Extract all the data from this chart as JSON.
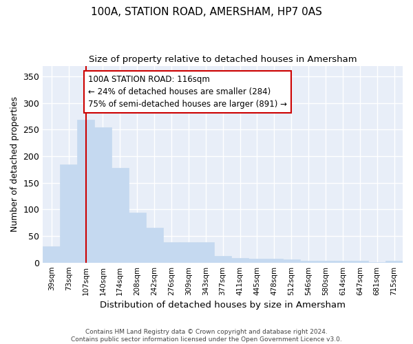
{
  "title": "100A, STATION ROAD, AMERSHAM, HP7 0AS",
  "subtitle": "Size of property relative to detached houses in Amersham",
  "xlabel": "Distribution of detached houses by size in Amersham",
  "ylabel": "Number of detached properties",
  "bar_color": "#c5d9f0",
  "bar_edge_color": "#c5d9f0",
  "background_color": "#e8eef8",
  "grid_color": "#ffffff",
  "fig_background": "#ffffff",
  "categories": [
    "39sqm",
    "73sqm",
    "107sqm",
    "140sqm",
    "174sqm",
    "208sqm",
    "242sqm",
    "276sqm",
    "309sqm",
    "343sqm",
    "377sqm",
    "411sqm",
    "445sqm",
    "478sqm",
    "512sqm",
    "546sqm",
    "580sqm",
    "614sqm",
    "647sqm",
    "681sqm",
    "715sqm"
  ],
  "values": [
    30,
    185,
    268,
    254,
    178,
    94,
    65,
    39,
    39,
    39,
    13,
    9,
    7,
    7,
    6,
    3,
    4,
    3,
    3,
    1,
    3
  ],
  "ylim": [
    0,
    370
  ],
  "yticks": [
    0,
    50,
    100,
    150,
    200,
    250,
    300,
    350
  ],
  "annotation_text": "100A STATION ROAD: 116sqm\n← 24% of detached houses are smaller (284)\n75% of semi-detached houses are larger (891) →",
  "vline_x": 2,
  "vline_color": "#cc0000",
  "annotation_box_facecolor": "#ffffff",
  "annotation_box_edgecolor": "#cc0000",
  "footer_line1": "Contains HM Land Registry data © Crown copyright and database right 2024.",
  "footer_line2": "Contains public sector information licensed under the Open Government Licence v3.0."
}
